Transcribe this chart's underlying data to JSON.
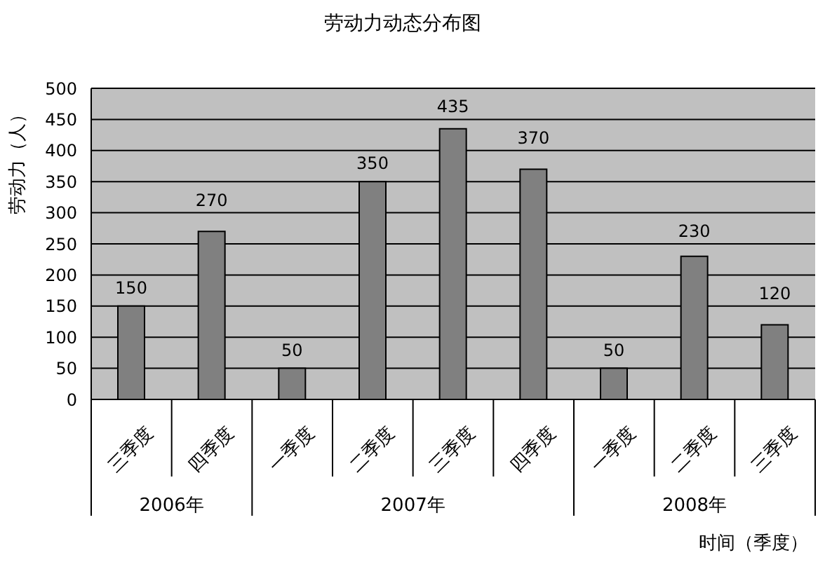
{
  "chart_data": {
    "type": "bar",
    "title": "劳动力动态分布图",
    "xlabel": "时间（季度）",
    "ylabel": "劳动力（人）",
    "categories": [
      "三季度",
      "四季度",
      "一季度",
      "二季度",
      "三季度",
      "四季度",
      "一季度",
      "二季度",
      "三季度"
    ],
    "values": [
      150,
      270,
      50,
      350,
      435,
      370,
      50,
      230,
      120
    ],
    "color": "#808080",
    "ylim": [
      0,
      500
    ],
    "yticks": [
      0,
      50,
      100,
      150,
      200,
      250,
      300,
      350,
      400,
      450,
      500
    ],
    "grid": "y",
    "data_labels": true,
    "annotations": [
      "2006年",
      "2007年",
      "2008年"
    ]
  }
}
